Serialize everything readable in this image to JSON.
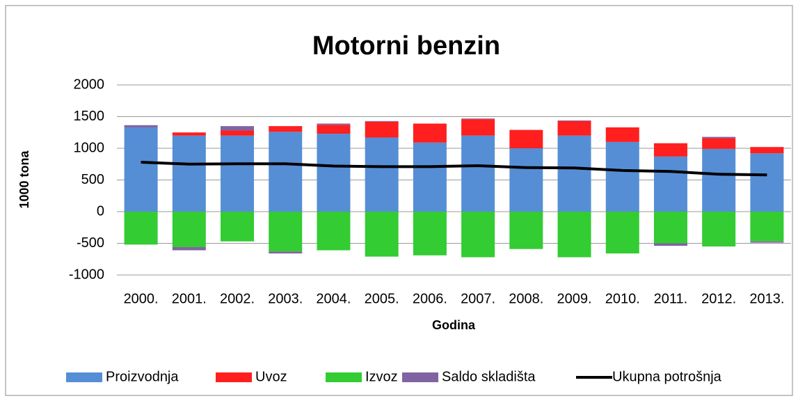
{
  "chart_data": {
    "type": "bar",
    "stacked": true,
    "title": "Motorni benzin",
    "x_label": "Godina",
    "y_label": "1000 tona",
    "categories": [
      "2000.",
      "2001.",
      "2002.",
      "2003.",
      "2004.",
      "2005.",
      "2006.",
      "2007.",
      "2008.",
      "2009.",
      "2010.",
      "2011.",
      "2012.",
      "2013."
    ],
    "series": [
      {
        "name": "Proizvodnja",
        "color": "#558ed5",
        "values": [
          1330,
          1200,
          1200,
          1260,
          1230,
          1170,
          1090,
          1200,
          1000,
          1200,
          1100,
          870,
          990,
          920
        ]
      },
      {
        "name": "Uvoz",
        "color": "#ff1f1f",
        "values": [
          0,
          50,
          80,
          90,
          140,
          250,
          300,
          260,
          290,
          230,
          230,
          210,
          170,
          100
        ]
      },
      {
        "name": "Izvoz",
        "color": "#33cc33",
        "values": [
          -520,
          -560,
          -470,
          -630,
          -610,
          -710,
          -690,
          -720,
          -590,
          -720,
          -660,
          -500,
          -550,
          -470
        ]
      },
      {
        "name": "Saldo skladišta",
        "color": "#8064a2",
        "values": [
          35,
          -50,
          70,
          -30,
          20,
          10,
          0,
          10,
          0,
          10,
          0,
          -40,
          20,
          -20
        ]
      },
      {
        "name": "Ukupna potrošnja",
        "color": "#000000",
        "mark": "line",
        "values": [
          780,
          750,
          755,
          755,
          720,
          710,
          710,
          725,
          695,
          690,
          650,
          635,
          590,
          580
        ]
      }
    ],
    "ylim": [
      -1000,
      2000
    ],
    "yticks": [
      -1000,
      -500,
      0,
      500,
      1000,
      1500,
      2000
    ],
    "grid": true,
    "legend": "bottom"
  }
}
